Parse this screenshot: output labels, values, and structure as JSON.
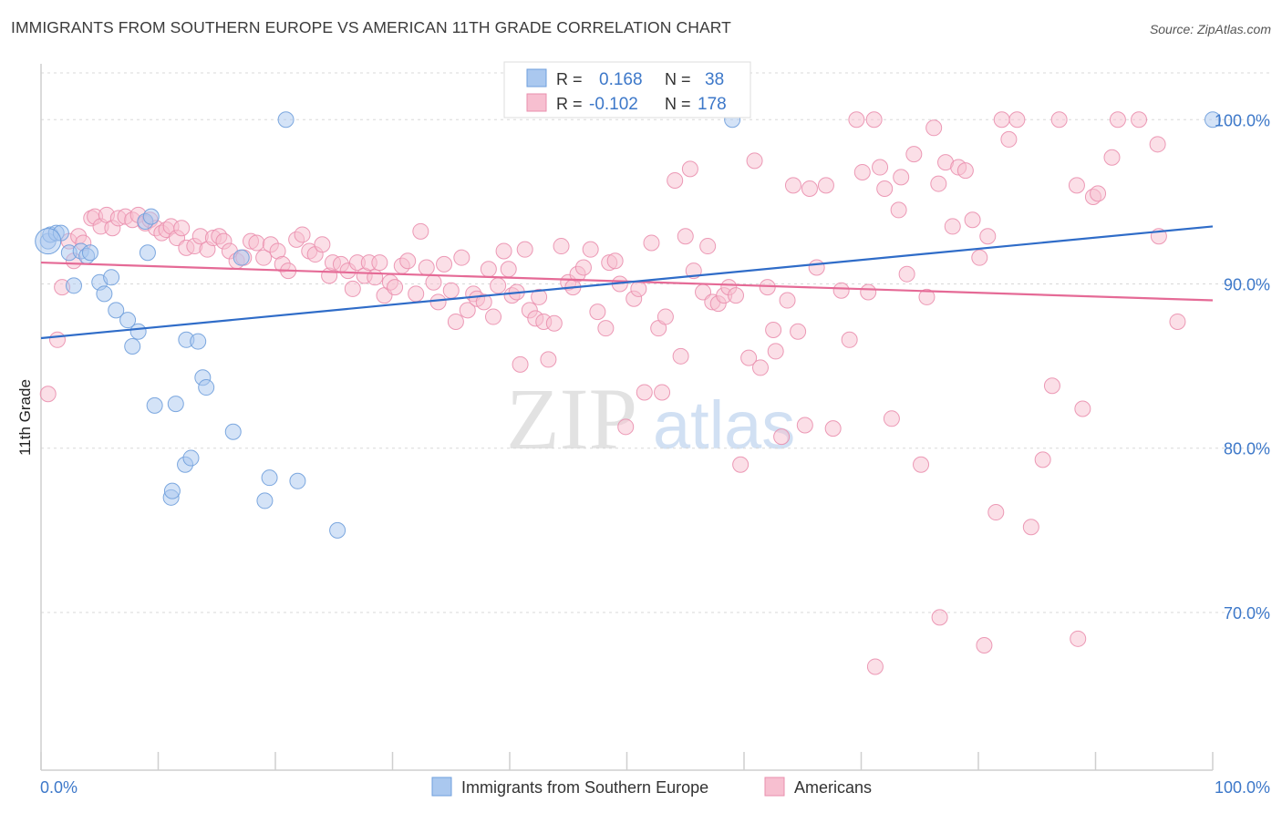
{
  "header": {
    "title": "IMMIGRANTS FROM SOUTHERN EUROPE VS AMERICAN 11TH GRADE CORRELATION CHART",
    "source": "Source: ZipAtlas.com"
  },
  "watermark": {
    "zip": "ZIP",
    "atlas": "atlas"
  },
  "legend_top": {
    "rows": [
      {
        "r_label": "R =",
        "r_value": "0.168",
        "n_label": "N =",
        "n_value": "38"
      },
      {
        "r_label": "R =",
        "r_value": "-0.102",
        "n_label": "N =",
        "n_value": "178"
      }
    ]
  },
  "legend_bottom": {
    "items": [
      {
        "label": "Immigrants from Southern Europe"
      },
      {
        "label": "Americans"
      }
    ]
  },
  "colors": {
    "blue_fill": "#aac8ef",
    "blue_stroke": "#6f9fdc",
    "blue_line": "#2f6cc8",
    "pink_fill": "#f7bfd0",
    "pink_stroke": "#ea8fae",
    "pink_line": "#e56a96",
    "tick_text": "#3d78c9",
    "grid": "#d8d8d8"
  },
  "chart_data": {
    "type": "scatter",
    "title": "IMMIGRANTS FROM SOUTHERN EUROPE VS AMERICAN 11TH GRADE CORRELATION CHART",
    "xlabel": "",
    "ylabel": "11th Grade",
    "xlim": [
      0,
      100
    ],
    "ylim": [
      60.4,
      103.4
    ],
    "x_tick_labels": [
      "0.0%",
      "100.0%"
    ],
    "y_ticks": [
      70,
      80,
      90,
      100
    ],
    "y_tick_labels": [
      "70.0%",
      "80.0%",
      "90.0%",
      "100.0%"
    ],
    "grid": true,
    "legend_position": "top-center",
    "series": [
      {
        "name": "Immigrants from Southern Europe",
        "color": "#6f9fdc",
        "trend": {
          "x": [
            0,
            100
          ],
          "y": [
            86.7,
            93.5
          ]
        },
        "points": [
          [
            0.6,
            92.6
          ],
          [
            0.8,
            93.0
          ],
          [
            1.3,
            93.1
          ],
          [
            1.7,
            93.1
          ],
          [
            2.4,
            91.9
          ],
          [
            3.4,
            92.0
          ],
          [
            3.9,
            91.7
          ],
          [
            4.2,
            91.9
          ],
          [
            2.8,
            89.9
          ],
          [
            5.0,
            90.1
          ],
          [
            5.4,
            89.4
          ],
          [
            6.0,
            90.4
          ],
          [
            6.4,
            88.4
          ],
          [
            7.4,
            87.8
          ],
          [
            7.8,
            86.2
          ],
          [
            8.3,
            87.1
          ],
          [
            8.9,
            93.8
          ],
          [
            9.1,
            91.9
          ],
          [
            9.4,
            94.1
          ],
          [
            9.7,
            82.6
          ],
          [
            11.1,
            77.0
          ],
          [
            11.2,
            77.4
          ],
          [
            11.5,
            82.7
          ],
          [
            12.3,
            79.0
          ],
          [
            12.4,
            86.6
          ],
          [
            12.8,
            79.4
          ],
          [
            13.4,
            86.5
          ],
          [
            13.8,
            84.3
          ],
          [
            14.1,
            83.7
          ],
          [
            16.4,
            81.0
          ],
          [
            17.1,
            91.6
          ],
          [
            19.1,
            76.8
          ],
          [
            19.5,
            78.2
          ],
          [
            20.9,
            100.0
          ],
          [
            21.9,
            78.0
          ],
          [
            25.3,
            75.0
          ],
          [
            59.0,
            100.0
          ],
          [
            100.0,
            100.0
          ]
        ]
      },
      {
        "name": "Americans",
        "color": "#ea8fae",
        "trend": {
          "x": [
            0,
            100
          ],
          "y": [
            91.3,
            89.0
          ]
        },
        "points": [
          [
            0.6,
            83.3
          ],
          [
            1.4,
            86.6
          ],
          [
            1.8,
            89.8
          ],
          [
            2.4,
            92.6
          ],
          [
            2.8,
            91.4
          ],
          [
            3.2,
            92.9
          ],
          [
            3.6,
            92.5
          ],
          [
            4.3,
            94.0
          ],
          [
            4.6,
            94.1
          ],
          [
            5.1,
            93.5
          ],
          [
            5.6,
            94.2
          ],
          [
            6.1,
            93.4
          ],
          [
            6.6,
            94.0
          ],
          [
            7.2,
            94.1
          ],
          [
            7.8,
            93.9
          ],
          [
            8.3,
            94.2
          ],
          [
            8.9,
            93.7
          ],
          [
            9.3,
            93.9
          ],
          [
            9.8,
            93.4
          ],
          [
            10.3,
            93.1
          ],
          [
            10.7,
            93.3
          ],
          [
            11.1,
            93.5
          ],
          [
            11.6,
            92.8
          ],
          [
            12.0,
            93.4
          ],
          [
            12.4,
            92.2
          ],
          [
            13.1,
            92.3
          ],
          [
            13.6,
            92.9
          ],
          [
            14.2,
            92.1
          ],
          [
            14.7,
            92.8
          ],
          [
            15.2,
            92.9
          ],
          [
            15.6,
            92.6
          ],
          [
            16.1,
            92.0
          ],
          [
            16.7,
            91.4
          ],
          [
            17.3,
            91.6
          ],
          [
            17.9,
            92.6
          ],
          [
            18.4,
            92.5
          ],
          [
            19.0,
            91.6
          ],
          [
            19.6,
            92.4
          ],
          [
            20.2,
            92.0
          ],
          [
            20.6,
            91.2
          ],
          [
            21.1,
            90.8
          ],
          [
            21.8,
            92.7
          ],
          [
            22.3,
            93.0
          ],
          [
            22.9,
            92.0
          ],
          [
            23.4,
            91.8
          ],
          [
            24.0,
            92.4
          ],
          [
            24.6,
            90.5
          ],
          [
            24.9,
            91.3
          ],
          [
            25.6,
            91.2
          ],
          [
            26.2,
            90.8
          ],
          [
            26.6,
            89.7
          ],
          [
            27.0,
            91.3
          ],
          [
            27.6,
            90.5
          ],
          [
            28.0,
            91.3
          ],
          [
            28.5,
            90.4
          ],
          [
            28.9,
            91.3
          ],
          [
            29.3,
            89.3
          ],
          [
            29.8,
            90.1
          ],
          [
            30.2,
            89.8
          ],
          [
            30.8,
            91.1
          ],
          [
            31.3,
            91.4
          ],
          [
            32.0,
            89.4
          ],
          [
            32.4,
            93.2
          ],
          [
            32.9,
            91.0
          ],
          [
            33.5,
            90.1
          ],
          [
            33.9,
            88.9
          ],
          [
            34.4,
            91.2
          ],
          [
            35.0,
            89.6
          ],
          [
            35.4,
            87.7
          ],
          [
            35.9,
            91.6
          ],
          [
            36.4,
            88.4
          ],
          [
            36.9,
            89.4
          ],
          [
            37.2,
            89.1
          ],
          [
            37.8,
            88.9
          ],
          [
            38.2,
            90.9
          ],
          [
            38.6,
            88.0
          ],
          [
            39.0,
            89.9
          ],
          [
            39.5,
            92.0
          ],
          [
            39.9,
            90.9
          ],
          [
            40.2,
            89.3
          ],
          [
            40.6,
            89.5
          ],
          [
            40.9,
            85.1
          ],
          [
            41.3,
            92.1
          ],
          [
            41.7,
            88.4
          ],
          [
            42.2,
            87.9
          ],
          [
            42.5,
            89.2
          ],
          [
            42.9,
            87.7
          ],
          [
            43.3,
            85.4
          ],
          [
            43.8,
            87.6
          ],
          [
            44.4,
            92.3
          ],
          [
            45.0,
            90.1
          ],
          [
            45.4,
            89.8
          ],
          [
            45.8,
            90.6
          ],
          [
            46.3,
            91.0
          ],
          [
            46.9,
            92.1
          ],
          [
            47.5,
            88.3
          ],
          [
            48.2,
            87.3
          ],
          [
            48.5,
            91.3
          ],
          [
            49.0,
            91.4
          ],
          [
            49.4,
            90.0
          ],
          [
            49.9,
            81.3
          ],
          [
            50.6,
            89.1
          ],
          [
            51.0,
            89.7
          ],
          [
            51.5,
            83.4
          ],
          [
            52.1,
            92.5
          ],
          [
            52.7,
            87.3
          ],
          [
            53.0,
            83.4
          ],
          [
            53.3,
            88.0
          ],
          [
            54.1,
            96.3
          ],
          [
            54.6,
            85.6
          ],
          [
            55.0,
            92.9
          ],
          [
            55.4,
            97.0
          ],
          [
            55.7,
            90.8
          ],
          [
            56.5,
            89.5
          ],
          [
            56.9,
            92.3
          ],
          [
            57.3,
            88.9
          ],
          [
            57.8,
            88.8
          ],
          [
            58.3,
            89.3
          ],
          [
            58.7,
            89.8
          ],
          [
            59.3,
            89.3
          ],
          [
            59.7,
            79.0
          ],
          [
            60.4,
            85.5
          ],
          [
            60.9,
            97.5
          ],
          [
            61.4,
            84.9
          ],
          [
            62.0,
            89.8
          ],
          [
            62.5,
            87.2
          ],
          [
            62.7,
            85.9
          ],
          [
            63.2,
            80.7
          ],
          [
            63.7,
            89.0
          ],
          [
            64.2,
            96.0
          ],
          [
            64.6,
            87.1
          ],
          [
            65.2,
            81.4
          ],
          [
            65.6,
            95.8
          ],
          [
            66.2,
            91.0
          ],
          [
            67.0,
            96.0
          ],
          [
            67.6,
            81.2
          ],
          [
            68.3,
            89.6
          ],
          [
            69.0,
            86.6
          ],
          [
            69.6,
            100.0
          ],
          [
            70.1,
            96.8
          ],
          [
            70.6,
            89.5
          ],
          [
            71.1,
            100.0
          ],
          [
            71.6,
            97.1
          ],
          [
            72.0,
            95.8
          ],
          [
            72.6,
            81.8
          ],
          [
            73.2,
            94.5
          ],
          [
            73.4,
            96.5
          ],
          [
            73.9,
            90.6
          ],
          [
            74.5,
            97.9
          ],
          [
            75.1,
            79.0
          ],
          [
            75.6,
            89.2
          ],
          [
            76.2,
            99.5
          ],
          [
            76.6,
            96.1
          ],
          [
            77.2,
            97.4
          ],
          [
            77.8,
            93.5
          ],
          [
            78.3,
            97.1
          ],
          [
            78.9,
            96.9
          ],
          [
            79.5,
            93.9
          ],
          [
            80.1,
            91.6
          ],
          [
            80.8,
            92.9
          ],
          [
            81.5,
            76.1
          ],
          [
            82.0,
            100.0
          ],
          [
            82.6,
            98.8
          ],
          [
            83.3,
            100.0
          ],
          [
            84.5,
            75.2
          ],
          [
            85.5,
            79.3
          ],
          [
            86.3,
            83.8
          ],
          [
            86.9,
            100.0
          ],
          [
            88.4,
            96.0
          ],
          [
            88.9,
            82.4
          ],
          [
            89.8,
            95.3
          ],
          [
            90.2,
            95.5
          ],
          [
            91.4,
            97.7
          ],
          [
            91.9,
            100.0
          ],
          [
            93.7,
            100.0
          ],
          [
            95.3,
            98.5
          ],
          [
            95.4,
            92.9
          ],
          [
            97.0,
            87.7
          ],
          [
            71.2,
            66.7
          ],
          [
            76.7,
            69.7
          ],
          [
            80.5,
            68.0
          ],
          [
            88.5,
            68.4
          ]
        ]
      }
    ]
  }
}
